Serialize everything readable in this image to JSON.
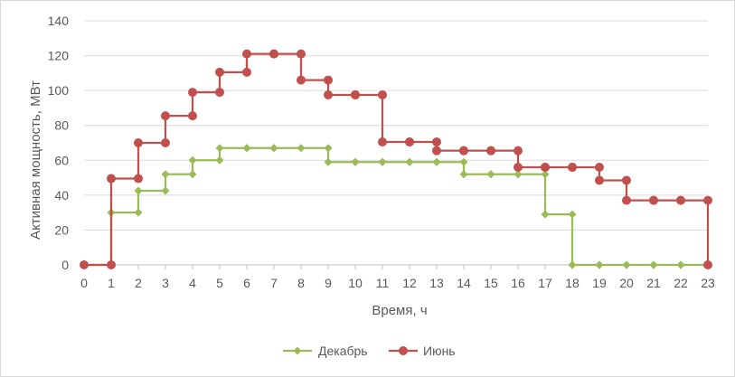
{
  "chart_data": {
    "type": "line",
    "step": true,
    "xlabel": "Время, ч",
    "ylabel": "Активная мощность, МВт",
    "x_ticks": [
      0,
      1,
      2,
      3,
      4,
      5,
      6,
      7,
      8,
      9,
      10,
      11,
      12,
      13,
      14,
      15,
      16,
      17,
      18,
      19,
      20,
      21,
      22,
      23
    ],
    "y_ticks": [
      0,
      20,
      40,
      60,
      80,
      100,
      120,
      140
    ],
    "xlim": [
      0,
      23
    ],
    "ylim": [
      0,
      140
    ],
    "grid": "horizontal",
    "legend_position": "bottom",
    "series": [
      {
        "name": "Декабрь",
        "color": "#9BBB59",
        "marker": "diamond",
        "x": [
          0,
          1,
          2,
          3,
          4,
          5,
          6,
          7,
          8,
          9,
          10,
          11,
          12,
          13,
          14,
          15,
          16,
          17,
          18,
          19,
          20,
          21,
          22,
          23
        ],
        "values": [
          0,
          30,
          42.5,
          52,
          60,
          67,
          67,
          67,
          67,
          59,
          59,
          59,
          59,
          59,
          52,
          52,
          52,
          29,
          0,
          0,
          0,
          0,
          0,
          0
        ]
      },
      {
        "name": "Июнь",
        "color": "#C0504D",
        "marker": "circle",
        "x": [
          0,
          1,
          2,
          3,
          4,
          5,
          6,
          7,
          8,
          9,
          10,
          11,
          12,
          13,
          14,
          15,
          16,
          17,
          18,
          19,
          20,
          21,
          22,
          23
        ],
        "values": [
          0,
          49.5,
          70,
          85.5,
          99,
          110.5,
          121,
          121,
          106,
          97.5,
          97.5,
          70.5,
          70.5,
          65.5,
          65.5,
          65.5,
          56,
          56,
          56,
          48.5,
          37,
          37,
          37,
          0
        ]
      }
    ]
  }
}
